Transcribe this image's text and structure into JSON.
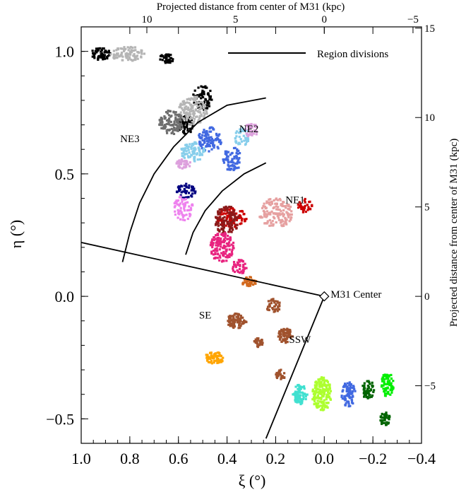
{
  "chart_data": {
    "type": "scatter",
    "xlabel": "ξ (°)",
    "ylabel": "η (°)",
    "top_xlabel": "Projected distance from center of M31 (kpc)",
    "right_ylabel": "Projected distance from center of M31 (kpc)",
    "xlim": [
      1.0,
      -0.4
    ],
    "ylim": [
      -0.6,
      1.1
    ],
    "x_ticks": [
      1.0,
      0.8,
      0.6,
      0.4,
      0.2,
      0.0,
      -0.2,
      -0.4
    ],
    "x_tick_labels": [
      "1.0",
      "0.8",
      "0.6",
      "0.4",
      "0.2",
      "0.0",
      "−0.2",
      "−0.4"
    ],
    "y_ticks": [
      1.0,
      0.5,
      0.0,
      -0.5
    ],
    "y_tick_labels": [
      "1.0",
      "0.5",
      "0.0",
      "−0.5"
    ],
    "top_ticks": [
      10,
      5,
      0,
      -5
    ],
    "top_tick_labels": [
      "10",
      "5",
      "0",
      "−5"
    ],
    "right_ticks": [
      15,
      10,
      5,
      0,
      -5
    ],
    "right_tick_labels": [
      "15",
      "10",
      "5",
      "0",
      "−5"
    ],
    "kpc_per_degree": 13.7,
    "legend": {
      "label": "Region divisions",
      "position": "top-right"
    },
    "center": {
      "x": 0.0,
      "y": 0.0,
      "label": "M31 Center"
    },
    "region_labels": [
      {
        "text": "NE3",
        "x": 0.8,
        "y": 0.63
      },
      {
        "text": "NE2",
        "x": 0.31,
        "y": 0.67
      },
      {
        "text": "NE1",
        "x": 0.12,
        "y": 0.38
      },
      {
        "text": "SE",
        "x": 0.49,
        "y": -0.09
      },
      {
        "text": "SSW",
        "x": 0.1,
        "y": -0.19
      }
    ],
    "division_lines": [
      {
        "name": "ne3-ne2-boundary",
        "points": [
          [
            0.83,
            0.14
          ],
          [
            0.8,
            0.26
          ],
          [
            0.76,
            0.38
          ],
          [
            0.7,
            0.5
          ],
          [
            0.62,
            0.61
          ],
          [
            0.52,
            0.71
          ],
          [
            0.4,
            0.78
          ],
          [
            0.24,
            0.81
          ]
        ]
      },
      {
        "name": "ne2-ne1-boundary",
        "points": [
          [
            0.57,
            0.17
          ],
          [
            0.54,
            0.26
          ],
          [
            0.49,
            0.35
          ],
          [
            0.42,
            0.43
          ],
          [
            0.33,
            0.5
          ],
          [
            0.24,
            0.545
          ]
        ]
      },
      {
        "name": "north-south-boundary",
        "points": [
          [
            1.0,
            0.22
          ],
          [
            0.0,
            0.0
          ]
        ]
      },
      {
        "name": "se-ssw-boundary",
        "points": [
          [
            0.0,
            0.0
          ],
          [
            0.24,
            -0.58
          ]
        ]
      }
    ],
    "series": [
      {
        "color": "#000000",
        "blobs": [
          [
            0.92,
            0.99,
            0.04,
            0.025,
            60
          ],
          [
            0.65,
            0.97,
            0.03,
            0.02,
            40
          ],
          [
            0.5,
            0.81,
            0.04,
            0.05,
            70
          ],
          [
            0.57,
            0.7,
            0.03,
            0.04,
            55
          ]
        ]
      },
      {
        "color": "#b5b5b5",
        "blobs": [
          [
            0.81,
            0.99,
            0.07,
            0.03,
            90
          ],
          [
            0.54,
            0.76,
            0.06,
            0.06,
            130
          ]
        ]
      },
      {
        "color": "#6e6e6e",
        "blobs": [
          [
            0.63,
            0.71,
            0.05,
            0.05,
            110
          ]
        ]
      },
      {
        "color": "#4169e1",
        "blobs": [
          [
            0.47,
            0.64,
            0.05,
            0.05,
            100
          ],
          [
            0.38,
            0.56,
            0.04,
            0.05,
            80
          ],
          [
            -0.1,
            -0.4,
            0.03,
            0.05,
            80
          ]
        ]
      },
      {
        "color": "#87ceeb",
        "blobs": [
          [
            0.54,
            0.59,
            0.05,
            0.04,
            80
          ],
          [
            0.34,
            0.65,
            0.03,
            0.04,
            40
          ]
        ]
      },
      {
        "color": "#dda0dd",
        "blobs": [
          [
            0.58,
            0.54,
            0.03,
            0.02,
            40
          ],
          [
            0.3,
            0.68,
            0.03,
            0.03,
            40
          ]
        ]
      },
      {
        "color": "#000080",
        "blobs": [
          [
            0.57,
            0.43,
            0.04,
            0.03,
            50
          ]
        ]
      },
      {
        "color": "#ee82ee",
        "blobs": [
          [
            0.58,
            0.36,
            0.04,
            0.05,
            60
          ]
        ]
      },
      {
        "color": "#cc0000",
        "blobs": [
          [
            0.38,
            0.32,
            0.06,
            0.04,
            80
          ],
          [
            0.08,
            0.37,
            0.03,
            0.03,
            40
          ]
        ]
      },
      {
        "color": "#8b1a1a",
        "blobs": [
          [
            0.4,
            0.31,
            0.05,
            0.06,
            110
          ]
        ]
      },
      {
        "color": "#e6a0a0",
        "blobs": [
          [
            0.2,
            0.34,
            0.07,
            0.06,
            140
          ]
        ]
      },
      {
        "color": "#e8237f",
        "blobs": [
          [
            0.42,
            0.2,
            0.05,
            0.06,
            130
          ],
          [
            0.35,
            0.12,
            0.03,
            0.03,
            40
          ]
        ]
      },
      {
        "color": "#d2691e",
        "blobs": [
          [
            0.31,
            0.06,
            0.03,
            0.02,
            40
          ]
        ]
      },
      {
        "color": "#a0522d",
        "blobs": [
          [
            0.36,
            -0.1,
            0.04,
            0.03,
            80
          ],
          [
            0.21,
            -0.04,
            0.03,
            0.03,
            40
          ],
          [
            0.16,
            -0.16,
            0.03,
            0.03,
            70
          ],
          [
            0.27,
            -0.19,
            0.02,
            0.02,
            30
          ],
          [
            0.18,
            -0.32,
            0.02,
            0.02,
            30
          ]
        ]
      },
      {
        "color": "#ffa500",
        "blobs": [
          [
            0.45,
            -0.25,
            0.04,
            0.025,
            70
          ]
        ]
      },
      {
        "color": "#40e0d0",
        "blobs": [
          [
            0.1,
            -0.4,
            0.03,
            0.04,
            80
          ]
        ]
      },
      {
        "color": "#adff2f",
        "blobs": [
          [
            0.01,
            -0.4,
            0.04,
            0.07,
            170
          ]
        ]
      },
      {
        "color": "#006400",
        "blobs": [
          [
            -0.18,
            -0.38,
            0.025,
            0.04,
            50
          ],
          [
            -0.25,
            -0.5,
            0.02,
            0.03,
            40
          ]
        ]
      },
      {
        "color": "#00ee00",
        "blobs": [
          [
            -0.26,
            -0.36,
            0.025,
            0.05,
            70
          ]
        ]
      }
    ]
  }
}
